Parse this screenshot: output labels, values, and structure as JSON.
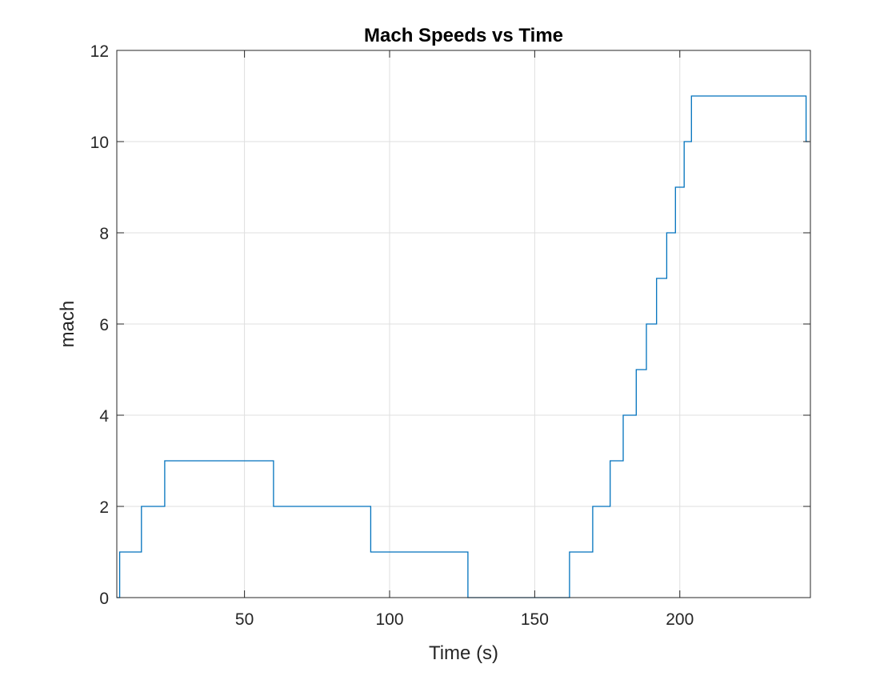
{
  "chart_data": {
    "type": "line",
    "title": "Mach Speeds vs Time",
    "xlabel": "Time (s)",
    "ylabel": "mach",
    "xlim": [
      6,
      245
    ],
    "ylim": [
      0,
      12
    ],
    "xticks": [
      50,
      100,
      150,
      200
    ],
    "yticks": [
      0,
      2,
      4,
      6,
      8,
      10,
      12
    ],
    "grid": true,
    "line_color": "#0072BD",
    "series": [
      {
        "step": "post",
        "points": [
          [
            6,
            0
          ],
          [
            7,
            1
          ],
          [
            14.5,
            2
          ],
          [
            22.5,
            3
          ],
          [
            60,
            2
          ],
          [
            93.5,
            1
          ],
          [
            127,
            0
          ],
          [
            162,
            1
          ],
          [
            170,
            2
          ],
          [
            176,
            3
          ],
          [
            180.5,
            4
          ],
          [
            185,
            5
          ],
          [
            188.5,
            6
          ],
          [
            192,
            7
          ],
          [
            195.5,
            8
          ],
          [
            198.5,
            9
          ],
          [
            201.5,
            10
          ],
          [
            204,
            11
          ],
          [
            243.5,
            10
          ],
          [
            244.5,
            10
          ]
        ]
      }
    ]
  }
}
